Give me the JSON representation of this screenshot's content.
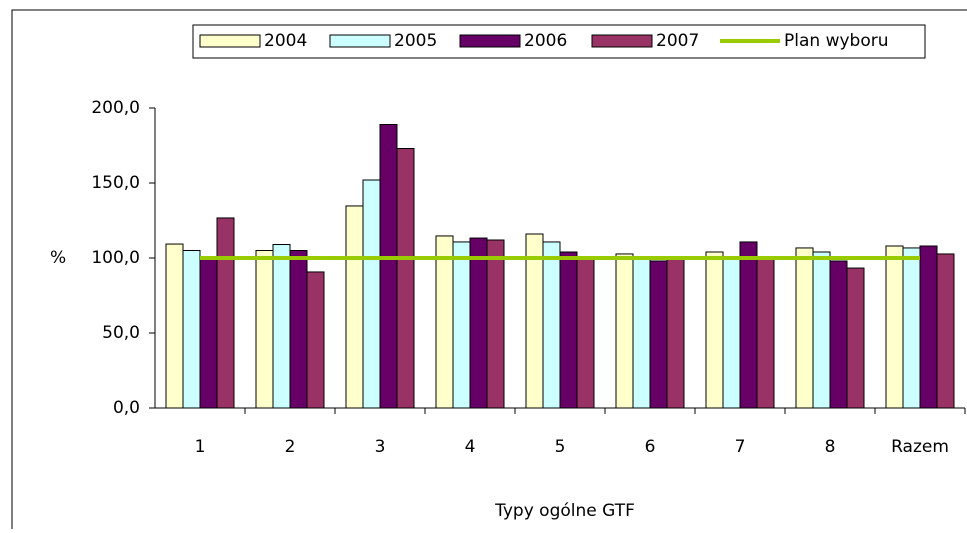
{
  "chart_data": {
    "type": "bar",
    "xlabel": "Typy ogólne GTF",
    "ylabel": "%",
    "categories": [
      "1",
      "2",
      "3",
      "4",
      "5",
      "6",
      "7",
      "8",
      "Razem"
    ],
    "series": [
      {
        "name": "2004",
        "color": "#ffffcc",
        "values": [
          109.3,
          105,
          134.7,
          114.7,
          116,
          102.7,
          104,
          106.7,
          108
        ]
      },
      {
        "name": "2005",
        "color": "#ccffff",
        "values": [
          105,
          109,
          152,
          110.7,
          110.7,
          99,
          99,
          104,
          106.7
        ]
      },
      {
        "name": "2006",
        "color": "#660066",
        "values": [
          100,
          105,
          189,
          113.3,
          104,
          98,
          110.7,
          98,
          108
        ]
      },
      {
        "name": "2007",
        "color": "#993366",
        "values": [
          126.7,
          90.7,
          173,
          112,
          99,
          99,
          99,
          93.3,
          102.7
        ]
      },
      {
        "name": "Plan wyboru",
        "type": "line",
        "color": "#99cc00",
        "values": [
          100,
          100,
          100,
          100,
          100,
          100,
          100,
          100,
          100
        ]
      }
    ],
    "ylim": [
      0,
      200
    ],
    "yticks": [
      {
        "value": 0,
        "label": "0,0"
      },
      {
        "value": 50,
        "label": "50,0"
      },
      {
        "value": 100,
        "label": "100,0"
      },
      {
        "value": 150,
        "label": "150,0"
      },
      {
        "value": 200,
        "label": "200,0"
      }
    ],
    "legend": "top"
  }
}
